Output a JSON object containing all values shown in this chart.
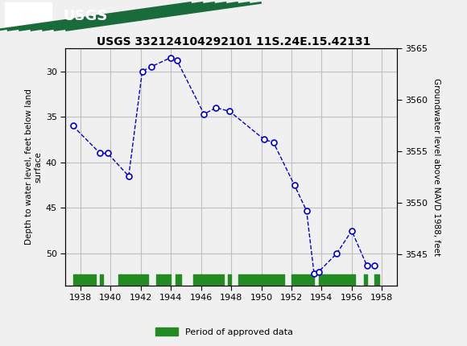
{
  "title": "USGS 332124104292101 11S.24E.15.42131",
  "ylabel_left": "Depth to water level, feet below land\nsurface",
  "ylabel_right": "Groundwater level above NAVD 1988, feet",
  "header_color": "#1a6b3c",
  "background_color": "#f0f0f0",
  "plot_bg_color": "#f0f0f0",
  "grid_color": "#c0c0c0",
  "line_color": "#0000cc",
  "marker_color": "#0000cc",
  "legend_label": "Period of approved data",
  "legend_color": "#228B22",
  "xlim": [
    1937,
    1959
  ],
  "ylim_left": [
    27.5,
    53.5
  ],
  "ylim_right_top": 3565.0,
  "ylim_right_bottom": 3542.0,
  "xticks": [
    1938,
    1940,
    1942,
    1944,
    1946,
    1948,
    1950,
    1952,
    1954,
    1956,
    1958
  ],
  "yticks_left": [
    30,
    35,
    40,
    45,
    50
  ],
  "yticks_right": [
    3565,
    3560,
    3555,
    3550,
    3545
  ],
  "data_x": [
    1937.5,
    1939.3,
    1939.8,
    1941.2,
    1942.1,
    1942.7,
    1944.0,
    1944.4,
    1946.2,
    1947.0,
    1947.9,
    1950.2,
    1950.8,
    1952.2,
    1953.0,
    1953.5,
    1953.8,
    1955.0,
    1956.0,
    1957.0,
    1957.5
  ],
  "data_y": [
    36.0,
    39.0,
    39.0,
    41.5,
    30.0,
    29.5,
    28.5,
    28.8,
    34.7,
    34.0,
    34.4,
    37.5,
    37.8,
    42.5,
    45.3,
    52.2,
    52.0,
    50.0,
    47.5,
    51.3,
    51.3
  ],
  "approved_bars": [
    [
      1937.5,
      1939.0
    ],
    [
      1939.3,
      1939.5
    ],
    [
      1940.5,
      1942.5
    ],
    [
      1943.0,
      1944.0
    ],
    [
      1944.3,
      1944.7
    ],
    [
      1945.5,
      1947.5
    ],
    [
      1947.8,
      1948.0
    ],
    [
      1948.5,
      1951.5
    ],
    [
      1952.0,
      1953.5
    ],
    [
      1953.8,
      1956.2
    ],
    [
      1956.8,
      1957.0
    ],
    [
      1957.5,
      1957.8
    ]
  ]
}
